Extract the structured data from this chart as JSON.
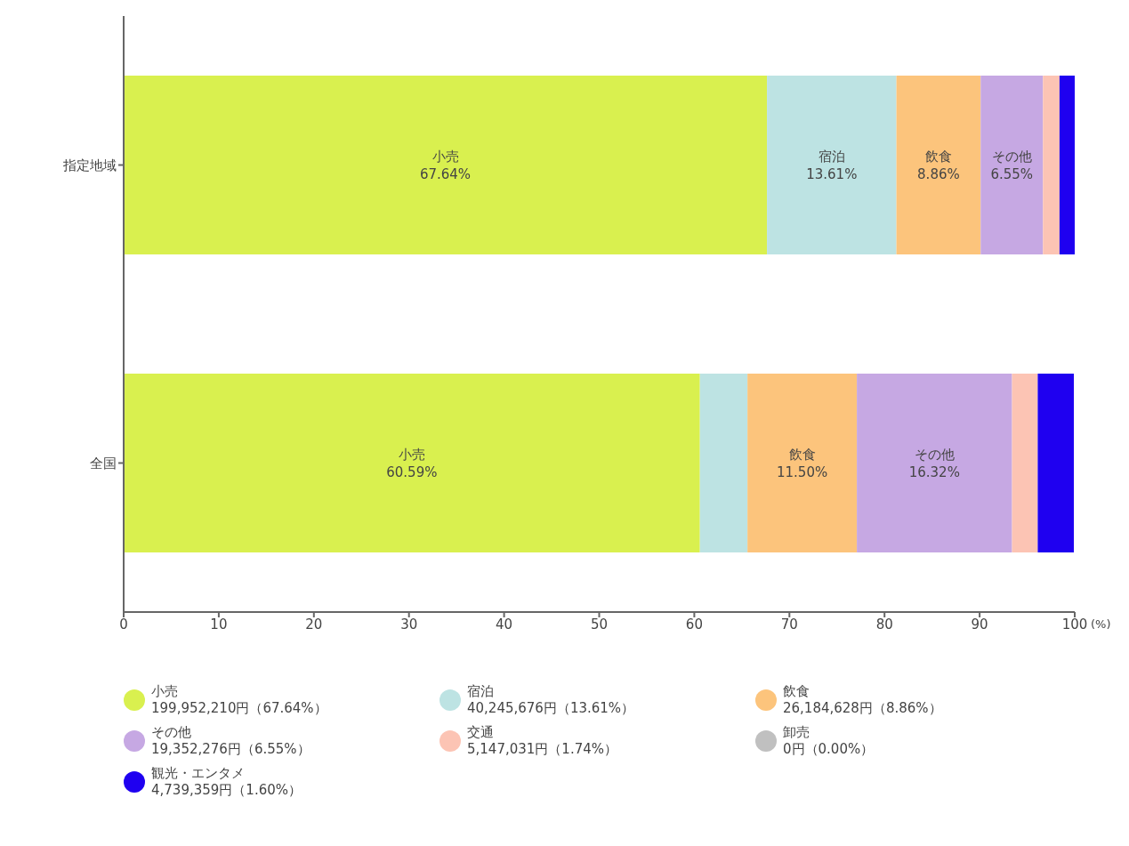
{
  "chart_data": {
    "type": "bar",
    "orientation": "horizontal",
    "stacked": true,
    "categories": [
      "指定地域",
      "全国"
    ],
    "xlabel": "(%)",
    "xlim": [
      0,
      100
    ],
    "xticks": [
      0,
      10,
      20,
      30,
      40,
      50,
      60,
      70,
      80,
      90,
      100
    ],
    "legend": "bottom",
    "series": [
      {
        "name": "小売",
        "color": "#d9f04f",
        "values": [
          67.64,
          60.59
        ],
        "value_labels": [
          "小売\n67.64%",
          "小売\n60.59%"
        ]
      },
      {
        "name": "宿泊",
        "color": "#bde3e3",
        "values": [
          13.61,
          5.0
        ],
        "value_labels": [
          "宿泊\n13.61%",
          null
        ]
      },
      {
        "name": "飲食",
        "color": "#fcc47c",
        "values": [
          8.86,
          11.5
        ],
        "value_labels": [
          "飲食\n8.86%",
          "飲食\n11.50%"
        ]
      },
      {
        "name": "その他",
        "color": "#c6a8e3",
        "values": [
          6.55,
          16.32
        ],
        "value_labels": [
          "その他\n6.55%",
          "その他\n16.32%"
        ]
      },
      {
        "name": "交通",
        "color": "#fcc4b4",
        "values": [
          1.74,
          2.7
        ],
        "value_labels": [
          null,
          null
        ]
      },
      {
        "name": "卸売",
        "color": "#c0c0c0",
        "values": [
          0,
          0
        ],
        "value_labels": [
          null,
          null
        ]
      },
      {
        "name": "観光・エンタメ",
        "color": "#1f00f0",
        "values": [
          1.6,
          3.8
        ],
        "value_labels": [
          null,
          null
        ]
      }
    ],
    "annotations": [
      "199,952,210円（67.64%）",
      "40,245,676円（13.61%）",
      "26,184,628円（8.86%）",
      "19,352,276円（6.55%）",
      "5,147,031円（1.74%）",
      "0円（0.00%）",
      "4,739,359円（1.60%）"
    ]
  }
}
